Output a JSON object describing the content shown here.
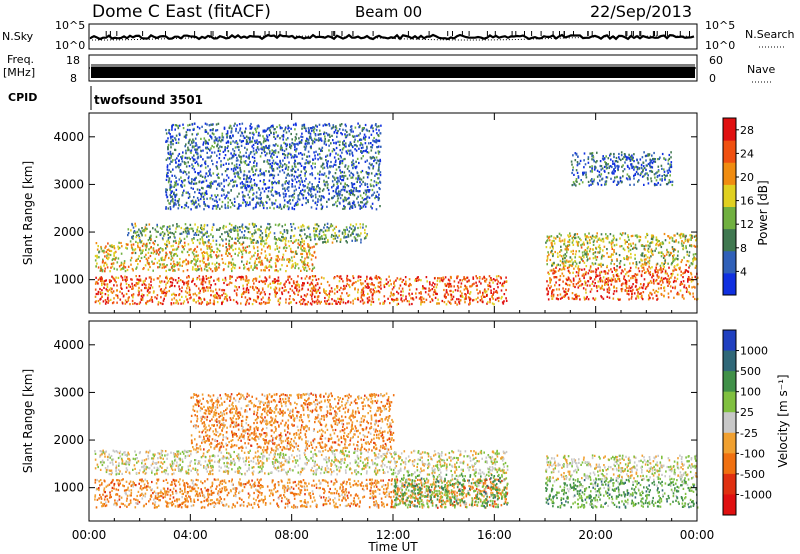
{
  "header": {
    "station": "Dome C East (fitACF)",
    "beam": "Beam 00",
    "date": "22/Sep/2013"
  },
  "summary_panels": {
    "nsky_label": "N.Sky",
    "nsky_ticks": [
      "10^5",
      "10^0"
    ],
    "nsearch_label": "N.Search",
    "nsearch_ticks": [
      "10^5",
      "10^0"
    ],
    "freq_label": "Freq.",
    "freq_unit": "[MHz]",
    "freq_ticks": [
      "18",
      "8"
    ],
    "nave_label": "Nave",
    "nave_ticks": [
      "60",
      "0"
    ],
    "cpid_label": "CPID",
    "cpid_value": "twofsound 3501"
  },
  "chart_data": [
    {
      "type": "heatmap",
      "name": "power",
      "xlabel": "Time UT",
      "ylabel": "Slant Range [km]",
      "xlim": [
        0,
        24
      ],
      "ylim": [
        300,
        4500
      ],
      "x_ticks": [
        "00:00",
        "04:00",
        "08:00",
        "12:00",
        "16:00",
        "20:00",
        "00:00"
      ],
      "y_ticks": [
        1000,
        2000,
        3000,
        4000
      ],
      "colorbar_label": "Power [dB]",
      "colorbar_ticks": [
        4,
        8,
        12,
        16,
        20,
        24,
        28
      ],
      "colorbar_colors": [
        "#1030e0",
        "#3060b8",
        "#407850",
        "#70b040",
        "#e0d020",
        "#f08c10",
        "#f05010",
        "#e01010"
      ],
      "colorbar_range": [
        0,
        30
      ],
      "data_gaps_hours": [
        [
          16.6,
          18.0
        ]
      ],
      "echo_regions": [
        {
          "t0": 0.2,
          "t1": 16.5,
          "r0": 500,
          "r1": 1100,
          "power_db": 24
        },
        {
          "t0": 0.2,
          "t1": 9.0,
          "r0": 1200,
          "r1": 1800,
          "power_db": 18
        },
        {
          "t0": 1.5,
          "t1": 11.0,
          "r0": 1800,
          "r1": 2200,
          "power_db": 12
        },
        {
          "t0": 3.0,
          "t1": 11.5,
          "r0": 2500,
          "r1": 4300,
          "power_db": 6
        },
        {
          "t0": 18.0,
          "t1": 24.0,
          "r0": 600,
          "r1": 1300,
          "power_db": 24
        },
        {
          "t0": 18.0,
          "t1": 24.0,
          "r0": 1300,
          "r1": 2000,
          "power_db": 16
        },
        {
          "t0": 19.0,
          "t1": 23.0,
          "r0": 3000,
          "r1": 3700,
          "power_db": 6
        }
      ]
    },
    {
      "type": "heatmap",
      "name": "velocity",
      "xlabel": "Time UT",
      "ylabel": "Slant Range [km]",
      "xlim": [
        0,
        24
      ],
      "ylim": [
        300,
        4500
      ],
      "x_ticks": [
        "00:00",
        "04:00",
        "08:00",
        "12:00",
        "16:00",
        "20:00",
        "00:00"
      ],
      "y_ticks": [
        1000,
        2000,
        3000,
        4000
      ],
      "colorbar_label": "Velocity [m s⁻¹]",
      "colorbar_ticks": [
        "1000",
        "500",
        "100",
        "25",
        "-25",
        "-100",
        "-500",
        "-1000"
      ],
      "colorbar_colors": [
        "#2040c0",
        "#306878",
        "#409048",
        "#80c040",
        "#c8c8c8",
        "#f0a030",
        "#f07010",
        "#e03010",
        "#e01010"
      ],
      "data_gaps_hours": [
        [
          16.6,
          18.0
        ]
      ],
      "echo_regions": [
        {
          "t0": 0.2,
          "t1": 16.5,
          "r0": 600,
          "r1": 1200,
          "velocity_ms": -150
        },
        {
          "t0": 0.2,
          "t1": 16.5,
          "r0": 1300,
          "r1": 1800,
          "velocity_ms": 0
        },
        {
          "t0": 4.0,
          "t1": 12.0,
          "r0": 1800,
          "r1": 3000,
          "velocity_ms": -100
        },
        {
          "t0": 12.0,
          "t1": 16.5,
          "r0": 600,
          "r1": 1300,
          "velocity_ms": 200
        },
        {
          "t0": 18.0,
          "t1": 24.0,
          "r0": 600,
          "r1": 1200,
          "velocity_ms": 150
        },
        {
          "t0": 18.0,
          "t1": 24.0,
          "r0": 1200,
          "r1": 1700,
          "velocity_ms": 0
        }
      ]
    }
  ]
}
